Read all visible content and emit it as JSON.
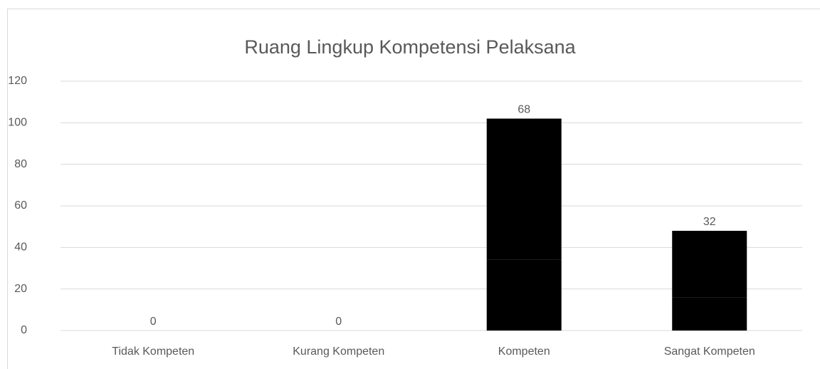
{
  "chart_data": {
    "type": "stacked_bar",
    "title": "Ruang Lingkup Kompetensi Pelaksana",
    "categories": [
      "Tidak Kompeten",
      "Kurang Kompeten",
      "Kompeten",
      "Sangat Kompeten"
    ],
    "series": [
      {
        "color": "#000000",
        "values": [
          0,
          0,
          34,
          16
        ]
      },
      {
        "color": "#000000",
        "values": [
          0,
          0,
          68,
          32
        ],
        "show_labels": true
      }
    ],
    "ylim": [
      0,
      120
    ],
    "yticks": [
      0,
      20,
      40,
      60,
      80,
      100,
      120
    ],
    "grid": true
  }
}
